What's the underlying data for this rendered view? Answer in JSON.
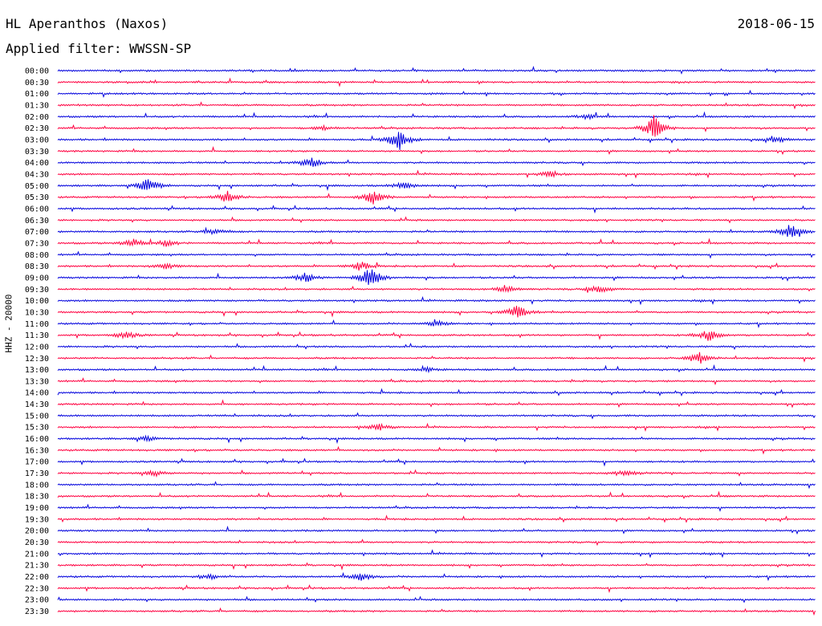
{
  "header": {
    "station": "HL Aperanthos (Naxos)",
    "date": "2018-06-15",
    "filter": "Applied filter: WWSSN-SP",
    "channel_label": "HHZ - 20000"
  },
  "colors": {
    "even_row": "#0000dd",
    "odd_row": "#ff0040",
    "text": "#000000"
  },
  "chart_data": {
    "type": "line",
    "title": "HL Aperanthos (Naxos)",
    "subtitle": "Applied filter: WWSSN-SP",
    "ylabel": "HHZ - 20000",
    "row_labels": [
      "00:00",
      "00:30",
      "01:00",
      "01:30",
      "02:00",
      "02:30",
      "03:00",
      "03:30",
      "04:00",
      "04:30",
      "05:00",
      "05:30",
      "06:00",
      "06:30",
      "07:00",
      "07:30",
      "08:00",
      "08:30",
      "09:00",
      "09:30",
      "10:00",
      "10:30",
      "11:00",
      "11:30",
      "12:00",
      "12:30",
      "13:00",
      "13:30",
      "14:00",
      "14:30",
      "15:00",
      "15:30",
      "16:00",
      "16:30",
      "17:00",
      "17:30",
      "18:00",
      "18:30",
      "19:00",
      "19:30",
      "20:00",
      "20:30",
      "21:00",
      "21:30",
      "22:00",
      "22:30",
      "23:00",
      "23:30"
    ],
    "x_range_minutes": [
      0,
      30
    ],
    "events": [
      {
        "row": "02:00",
        "minute": 21.0,
        "amplitude": 3
      },
      {
        "row": "02:30",
        "minute": 10.5,
        "amplitude": 3
      },
      {
        "row": "02:30",
        "minute": 23.6,
        "amplitude": 16
      },
      {
        "row": "03:00",
        "minute": 13.5,
        "amplitude": 14
      },
      {
        "row": "03:00",
        "minute": 28.5,
        "amplitude": 4
      },
      {
        "row": "04:00",
        "minute": 10.0,
        "amplitude": 8
      },
      {
        "row": "04:30",
        "minute": 19.5,
        "amplitude": 4
      },
      {
        "row": "05:00",
        "minute": 3.6,
        "amplitude": 10
      },
      {
        "row": "05:00",
        "minute": 13.7,
        "amplitude": 5
      },
      {
        "row": "05:30",
        "minute": 6.7,
        "amplitude": 8
      },
      {
        "row": "05:30",
        "minute": 12.5,
        "amplitude": 10
      },
      {
        "row": "07:00",
        "minute": 6.2,
        "amplitude": 4
      },
      {
        "row": "07:00",
        "minute": 29.0,
        "amplitude": 10
      },
      {
        "row": "07:30",
        "minute": 3.0,
        "amplitude": 6
      },
      {
        "row": "07:30",
        "minute": 4.3,
        "amplitude": 4
      },
      {
        "row": "08:30",
        "minute": 4.3,
        "amplitude": 4
      },
      {
        "row": "08:30",
        "minute": 12.0,
        "amplitude": 6
      },
      {
        "row": "09:00",
        "minute": 12.4,
        "amplitude": 16
      },
      {
        "row": "09:00",
        "minute": 9.8,
        "amplitude": 6
      },
      {
        "row": "09:30",
        "minute": 17.7,
        "amplitude": 5
      },
      {
        "row": "09:30",
        "minute": 21.4,
        "amplitude": 6
      },
      {
        "row": "10:30",
        "minute": 18.2,
        "amplitude": 10
      },
      {
        "row": "11:00",
        "minute": 15.0,
        "amplitude": 4
      },
      {
        "row": "11:30",
        "minute": 2.7,
        "amplitude": 5
      },
      {
        "row": "11:30",
        "minute": 25.8,
        "amplitude": 8
      },
      {
        "row": "12:30",
        "minute": 25.4,
        "amplitude": 8
      },
      {
        "row": "13:00",
        "minute": 14.6,
        "amplitude": 3
      },
      {
        "row": "15:30",
        "minute": 12.7,
        "amplitude": 4
      },
      {
        "row": "16:00",
        "minute": 3.5,
        "amplitude": 3
      },
      {
        "row": "17:30",
        "minute": 3.8,
        "amplitude": 4
      },
      {
        "row": "17:30",
        "minute": 22.5,
        "amplitude": 4
      },
      {
        "row": "22:00",
        "minute": 12.0,
        "amplitude": 6
      },
      {
        "row": "22:00",
        "minute": 6.0,
        "amplitude": 3
      }
    ]
  }
}
